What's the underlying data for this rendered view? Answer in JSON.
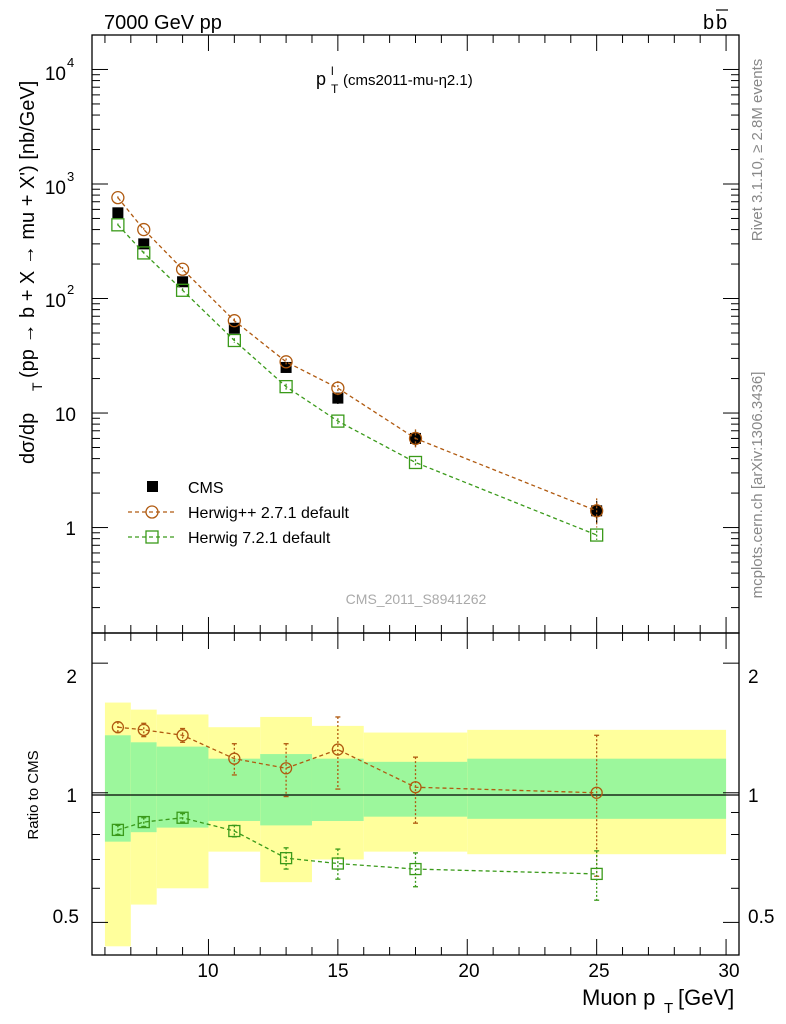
{
  "header": {
    "left": "7000 GeV pp",
    "right_main": "b",
    "right_bar": "b"
  },
  "side": {
    "rivet": "Rivet 3.1.10, ≥ 2.8M events",
    "mcplots": "mcplots.cern.ch [arXiv:1306.3436]"
  },
  "watermark": "CMS_2011_S8941262",
  "chart_data": [
    {
      "type": "scatter",
      "panel": "main",
      "title_main": "p",
      "title_sub": "T",
      "title_sup": "l",
      "title_rest": "(cms2011-mu-η2.1)",
      "ylabel": "dσ/dp_T (pp → b + X → mu + X') [nb/GeV]",
      "ylabel_main": "dσ/dp",
      "ylabel_sub": "T",
      "ylabel_rest": "(pp → b + X → mu + X') [nb/GeV]",
      "yscale": "log",
      "ylim": [
        0.12,
        20000
      ],
      "xlim": [
        5.5,
        30.5
      ],
      "ytick_labels": [
        "1",
        "10",
        "10",
        "10"
      ],
      "ytick_exponents": [
        "",
        "",
        "2",
        "3",
        "4"
      ],
      "ytick_values": [
        1,
        10,
        100,
        1000,
        10000
      ],
      "legend_position": "lower-left",
      "series": [
        {
          "name": "CMS",
          "color": "#000000",
          "marker": "filled-square",
          "x": [
            6.5,
            7.5,
            9,
            11,
            13,
            15,
            18,
            25
          ],
          "y": [
            560,
            300,
            140,
            55,
            25,
            13.5,
            6.0,
            1.4
          ],
          "yerr": [
            40,
            20,
            10,
            5,
            2.5,
            1.5,
            0.9,
            0.3
          ]
        },
        {
          "name": "Herwig++ 2.7.1 default",
          "color": "#b05a10",
          "marker": "open-circle",
          "x": [
            6.5,
            7.5,
            9,
            11,
            13,
            15,
            18,
            25
          ],
          "y": [
            760,
            400,
            180,
            64,
            28,
            16.5,
            6.0,
            1.4
          ],
          "yerr": [
            20,
            15,
            8,
            3,
            2,
            2.5,
            1.2,
            0.4
          ]
        },
        {
          "name": "Herwig 7.2.1 default",
          "color": "#3a9a1a",
          "marker": "open-square",
          "x": [
            6.5,
            7.5,
            9,
            11,
            13,
            15,
            18,
            25
          ],
          "y": [
            440,
            250,
            118,
            43,
            17,
            8.5,
            3.7,
            0.86
          ],
          "yerr": [
            12,
            8,
            5,
            2,
            1,
            0.5,
            0.25,
            0.08
          ]
        }
      ]
    },
    {
      "type": "scatter",
      "panel": "ratio",
      "ylabel": "Ratio to CMS",
      "ylim": [
        0.42,
        2.35
      ],
      "xlim": [
        5.5,
        30.5
      ],
      "xlabel_main": "Muon p",
      "xlabel_sub": "T",
      "xlabel_rest": "[GeV]",
      "xtick_labels": [
        "10",
        "15",
        "20",
        "25",
        "30"
      ],
      "xtick_values": [
        10,
        15,
        20,
        25,
        30
      ],
      "ytick_labels": [
        "0.5",
        "1",
        "2"
      ],
      "ytick_values": [
        0.5,
        1,
        2
      ],
      "bands": {
        "edges": [
          6,
          7,
          8,
          10,
          12,
          14,
          16,
          20,
          30
        ],
        "inner_low": [
          0.77,
          0.81,
          0.83,
          0.86,
          0.84,
          0.86,
          0.88,
          0.87
        ],
        "inner_high": [
          1.36,
          1.31,
          1.28,
          1.2,
          1.23,
          1.2,
          1.18,
          1.2
        ],
        "outer_low": [
          0.44,
          0.55,
          0.6,
          0.73,
          0.62,
          0.7,
          0.73,
          0.72
        ],
        "outer_high": [
          1.62,
          1.56,
          1.52,
          1.42,
          1.5,
          1.43,
          1.38,
          1.4
        ],
        "inner_color": "#9cf79c",
        "outer_color": "#ffff9c"
      },
      "series": [
        {
          "name": "Herwig++ 2.7.1 default",
          "color": "#b05a10",
          "x": [
            6.5,
            7.5,
            9,
            11,
            13,
            15,
            18,
            25
          ],
          "y": [
            1.42,
            1.4,
            1.36,
            1.2,
            1.14,
            1.26,
            1.03,
            1.0
          ],
          "yerr": [
            0.04,
            0.05,
            0.05,
            0.1,
            0.16,
            0.24,
            0.18,
            0.36
          ]
        },
        {
          "name": "Herwig 7.2.1 default",
          "color": "#3a9a1a",
          "x": [
            6.5,
            7.5,
            9,
            11,
            13,
            15,
            18,
            25
          ],
          "y": [
            0.82,
            0.855,
            0.875,
            0.815,
            0.705,
            0.685,
            0.665,
            0.648
          ],
          "yerr": [
            0.02,
            0.02,
            0.02,
            0.025,
            0.04,
            0.055,
            0.06,
            0.085
          ]
        }
      ]
    }
  ]
}
